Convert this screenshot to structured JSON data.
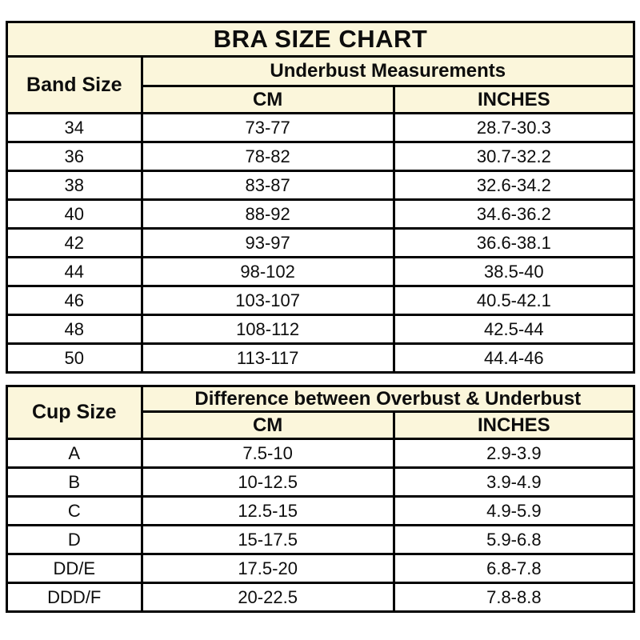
{
  "colors": {
    "header_bg": "#FBF6DB",
    "border": "#000000",
    "row_bg": "#FFFFFF",
    "text": "#0D0D0D"
  },
  "chart_data": [
    {
      "type": "table",
      "title": "BRA SIZE CHART",
      "corner_header": "Band Size",
      "group_header": "Underbust Measurements",
      "sub_columns": [
        "CM",
        "INCHES"
      ],
      "rows": [
        {
          "label": "34",
          "cm": "73-77",
          "inches": "28.7-30.3"
        },
        {
          "label": "36",
          "cm": "78-82",
          "inches": "30.7-32.2"
        },
        {
          "label": "38",
          "cm": "83-87",
          "inches": "32.6-34.2"
        },
        {
          "label": "40",
          "cm": "88-92",
          "inches": "34.6-36.2"
        },
        {
          "label": "42",
          "cm": "93-97",
          "inches": "36.6-38.1"
        },
        {
          "label": "44",
          "cm": "98-102",
          "inches": "38.5-40"
        },
        {
          "label": "46",
          "cm": "103-107",
          "inches": "40.5-42.1"
        },
        {
          "label": "48",
          "cm": "108-112",
          "inches": "42.5-44"
        },
        {
          "label": "50",
          "cm": "113-117",
          "inches": "44.4-46"
        }
      ]
    },
    {
      "type": "table",
      "corner_header": "Cup Size",
      "group_header": "Difference between Overbust & Underbust",
      "sub_columns": [
        "CM",
        "INCHES"
      ],
      "rows": [
        {
          "label": "A",
          "cm": "7.5-10",
          "inches": "2.9-3.9"
        },
        {
          "label": "B",
          "cm": "10-12.5",
          "inches": "3.9-4.9"
        },
        {
          "label": "C",
          "cm": "12.5-15",
          "inches": "4.9-5.9"
        },
        {
          "label": "D",
          "cm": "15-17.5",
          "inches": "5.9-6.8"
        },
        {
          "label": "DD/E",
          "cm": "17.5-20",
          "inches": "6.8-7.8"
        },
        {
          "label": "DDD/F",
          "cm": "20-22.5",
          "inches": "7.8-8.8"
        }
      ]
    }
  ]
}
